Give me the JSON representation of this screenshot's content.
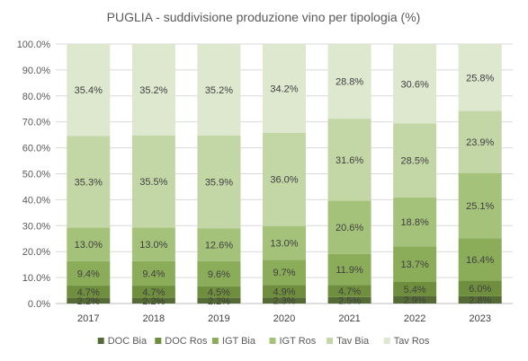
{
  "chart_data": {
    "type": "bar",
    "stacked": true,
    "percent": true,
    "title": "PUGLIA - suddivisione produzione  vino per tipologia (%)",
    "xlabel": "",
    "ylabel": "",
    "ylim": [
      0,
      100
    ],
    "yticks": [
      "0.0%",
      "10.0%",
      "20.0%",
      "30.0%",
      "40.0%",
      "50.0%",
      "60.0%",
      "70.0%",
      "80.0%",
      "90.0%",
      "100.0%"
    ],
    "grid": true,
    "legend_position": "bottom",
    "categories": [
      "2017",
      "2018",
      "2019",
      "2020",
      "2021",
      "2022",
      "2023"
    ],
    "series": [
      {
        "name": "DOC Bia",
        "color": "#556b35",
        "values": [
          2.2,
          2.2,
          2.2,
          2.3,
          2.5,
          2.9,
          2.8
        ],
        "labels": [
          "2.2%",
          "2.2%",
          "2.2%",
          "2.3%",
          "2.5%",
          "2.9%",
          "2.8%"
        ]
      },
      {
        "name": "DOC Ros",
        "color": "#6f8f3e",
        "values": [
          4.7,
          4.7,
          4.5,
          4.9,
          4.7,
          5.4,
          6.0
        ],
        "labels": [
          "4.7%",
          "4.7%",
          "4.5%",
          "4.9%",
          "4.7%",
          "5.4%",
          "6.0%"
        ]
      },
      {
        "name": "IGT Bia",
        "color": "#8bac59",
        "values": [
          9.4,
          9.4,
          9.6,
          9.7,
          11.9,
          13.7,
          16.4
        ],
        "labels": [
          "9.4%",
          "9.4%",
          "9.6%",
          "9.7%",
          "11.9%",
          "13.7%",
          "16.4%"
        ]
      },
      {
        "name": "IGT Ros",
        "color": "#a5c27a",
        "values": [
          13.0,
          13.0,
          12.6,
          13.0,
          20.6,
          18.8,
          25.1
        ],
        "labels": [
          "13.0%",
          "13.0%",
          "12.6%",
          "13.0%",
          "20.6%",
          "18.8%",
          "25.1%"
        ]
      },
      {
        "name": "Tav Bia",
        "color": "#c3d6a6",
        "values": [
          35.3,
          35.5,
          35.9,
          36.0,
          31.6,
          28.5,
          23.9
        ],
        "labels": [
          "35.3%",
          "35.5%",
          "35.9%",
          "36.0%",
          "31.6%",
          "28.5%",
          "23.9%"
        ]
      },
      {
        "name": "Tav Ros",
        "color": "#dde8cf",
        "values": [
          35.4,
          35.2,
          35.2,
          34.2,
          28.8,
          30.6,
          25.8
        ],
        "labels": [
          "35.4%",
          "35.2%",
          "35.2%",
          "34.2%",
          "28.8%",
          "30.6%",
          "25.8%"
        ]
      }
    ]
  }
}
